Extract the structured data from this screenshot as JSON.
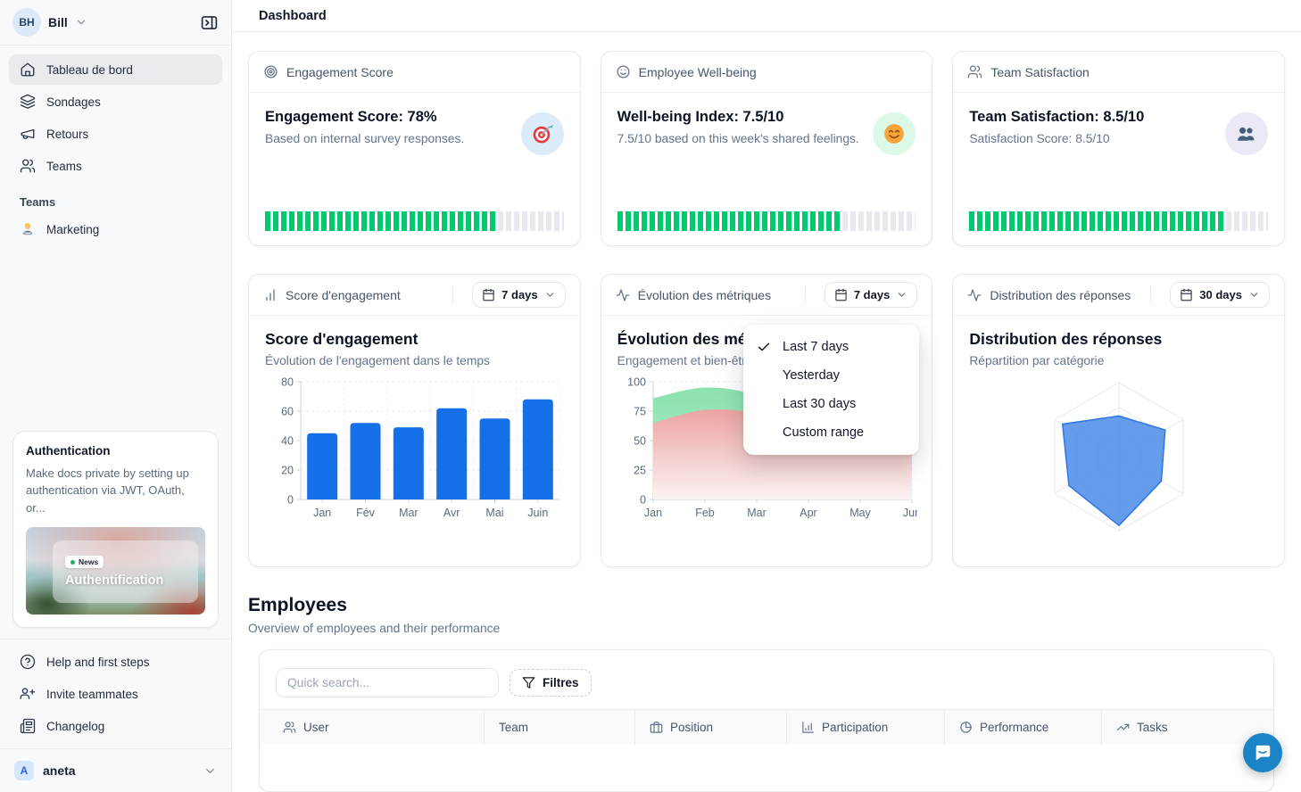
{
  "topbar": {
    "title": "Dashboard"
  },
  "sidebar": {
    "user": {
      "initials": "BH",
      "name": "Bill"
    },
    "nav": [
      {
        "label": "Tableau de bord",
        "active": true
      },
      {
        "label": "Sondages",
        "active": false
      },
      {
        "label": "Retours",
        "active": false
      },
      {
        "label": "Teams",
        "active": false
      }
    ],
    "section_label": "Teams",
    "team_items": [
      {
        "label": "Marketing"
      }
    ],
    "promo": {
      "title": "Authentication",
      "body": "Make docs private by setting up authentication via JWT, OAuth, or...",
      "badge": "News",
      "image_title": "Authentification"
    },
    "footer_nav": [
      {
        "label": "Help and first steps"
      },
      {
        "label": "Invite teammates"
      },
      {
        "label": "Changelog"
      }
    ],
    "workspace": {
      "initial": "A",
      "name": "aneta"
    }
  },
  "metric_cards": [
    {
      "header": "Engagement Score",
      "title": "Engagement Score: 78%",
      "subtitle": "Based on internal survey responses.",
      "progress_pct": 78,
      "progress_color": "#00c96e",
      "icon": "target-emoji",
      "icon_bg": "#dcebfa"
    },
    {
      "header": "Employee Well-being",
      "title": "Well-being Index: 7.5/10",
      "subtitle": "7.5/10 based on this week's shared feelings.",
      "progress_pct": 75,
      "progress_color": "#00c96e",
      "icon": "smiling-face-emoji",
      "icon_bg": "#dcf8e7"
    },
    {
      "header": "Team Satisfaction",
      "title": "Team Satisfaction: 8.5/10",
      "subtitle": "Satisfaction Score: 8.5/10",
      "progress_pct": 85,
      "progress_color": "#00c96e",
      "icon": "busts-emoji",
      "icon_bg": "#ece9f7"
    }
  ],
  "chart_cards": [
    {
      "header": "Score d'engagement",
      "range": "7 days"
    },
    {
      "header": "Évolution des métriques",
      "range": "7 days"
    },
    {
      "header": "Distribution des réponses",
      "range": "30 days"
    }
  ],
  "dropdown": {
    "items": [
      {
        "label": "Last 7 days",
        "checked": true
      },
      {
        "label": "Yesterday",
        "checked": false
      },
      {
        "label": "Last 30 days",
        "checked": false
      },
      {
        "label": "Custom range",
        "checked": false
      }
    ]
  },
  "employees": {
    "title": "Employees",
    "subtitle": "Overview of employees and their performance",
    "search_placeholder": "Quick search...",
    "filter_label": "Filtres",
    "columns": [
      {
        "label": "User"
      },
      {
        "label": "Team"
      },
      {
        "label": "Position"
      },
      {
        "label": "Participation"
      },
      {
        "label": "Performance"
      },
      {
        "label": "Tasks"
      }
    ]
  },
  "chat": {
    "color": "#1b84c7"
  },
  "chart_data": [
    {
      "type": "bar",
      "title": "Score d'engagement",
      "subtitle": "Évolution de l'engagement dans le temps",
      "categories": [
        "Jan",
        "Fév",
        "Mar",
        "Avr",
        "Mai",
        "Juin"
      ],
      "values": [
        45,
        52,
        49,
        62,
        55,
        68
      ],
      "ylim": [
        0,
        80
      ],
      "yticks": [
        0,
        20,
        40,
        60,
        80
      ],
      "bar_color": "#156fe8",
      "grid": "dashed"
    },
    {
      "type": "area",
      "title": "Évolution des métriques",
      "subtitle": "Engagement et bien-être",
      "x": [
        "Jan",
        "Feb",
        "Mar",
        "Apr",
        "May",
        "Jun"
      ],
      "series": [
        {
          "name": "engagement",
          "color": "#8ce1ae",
          "color2": "#b9eecf",
          "values": [
            86,
            95,
            88,
            63,
            67,
            70
          ]
        },
        {
          "name": "bien-être",
          "color": "#eca3a2",
          "color2": "#fbf3f2",
          "values": [
            65,
            76,
            73,
            58,
            63,
            65
          ]
        }
      ],
      "ylim": [
        0,
        100
      ],
      "yticks": [
        0,
        25,
        50,
        75,
        100
      ],
      "grid": "dashed"
    },
    {
      "type": "radar",
      "title": "Distribution des réponses",
      "subtitle": "Répartition par catégorie",
      "axes": 6,
      "levels": 3,
      "values": [
        0.55,
        0.72,
        0.66,
        0.93,
        0.78,
        0.88
      ],
      "fill": "#4a8be8",
      "fill_opacity": 0.85,
      "stroke": "#2b78e4",
      "grid_color": "#e4e8ef"
    }
  ]
}
